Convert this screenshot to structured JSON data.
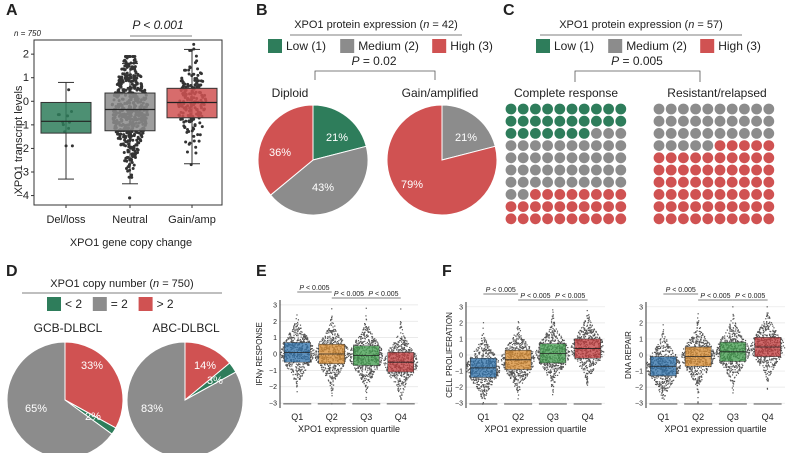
{
  "colors": {
    "low": "#2e7d5b",
    "medium": "#8c8c8c",
    "high": "#d05252",
    "dots": "#333333"
  },
  "panels": {
    "a": "A",
    "b": "B",
    "c": "C",
    "d": "D",
    "e": "E",
    "f": "F"
  },
  "chart_data": [
    {
      "id": "A",
      "type": "box",
      "n_label": "n = 750",
      "ylabel": "XPO1 transcript levels",
      "xlabel": "XPO1 gene copy change",
      "categories": [
        "Del/loss",
        "Neutral",
        "Gain/amp"
      ],
      "yticks": [
        "−4",
        "−3",
        "−2",
        "−1",
        "0",
        "1",
        "2"
      ],
      "ylim": [
        -4.4,
        2.6
      ],
      "boxes": [
        {
          "name": "Del/loss",
          "min": -3.3,
          "q1": -1.35,
          "median": -0.85,
          "q3": -0.05,
          "max": 0.8,
          "color": "#2e7d5b"
        },
        {
          "name": "Neutral",
          "min": -3.5,
          "q1": -1.25,
          "median": -0.35,
          "q3": 0.35,
          "max": 1.6,
          "color": "#8c8c8c"
        },
        {
          "name": "Gain/amp",
          "min": -2.65,
          "q1": -0.7,
          "median": -0.05,
          "q3": 0.55,
          "max": 2.2,
          "color": "#d05252"
        }
      ],
      "pvalue": "P < 0.001"
    },
    {
      "id": "B",
      "type": "pie",
      "title_prefix": "XPO1 protein expression (",
      "title_n": "n",
      "title_suffix": " = 42)",
      "legend": [
        "Low (1)",
        "Medium (2)",
        "High (3)"
      ],
      "pvalue": "P = 0.02",
      "pies": [
        {
          "name": "Diploid",
          "slices": [
            {
              "label": "Low",
              "value": 21
            },
            {
              "label": "Medium",
              "value": 43
            },
            {
              "label": "High",
              "value": 36
            }
          ],
          "labels": [
            "21%",
            "43%",
            "36%"
          ]
        },
        {
          "name": "Gain/amplified",
          "slices": [
            {
              "label": "Low",
              "value": 0
            },
            {
              "label": "Medium",
              "value": 21
            },
            {
              "label": "High",
              "value": 79
            }
          ],
          "labels": [
            "21%",
            "79%"
          ]
        }
      ]
    },
    {
      "id": "C",
      "type": "waffle",
      "title_prefix": "XPO1 protein expression (",
      "title_n": "n",
      "title_suffix": " = 57)",
      "legend": [
        "Low (1)",
        "Medium (2)",
        "High (3)"
      ],
      "pvalue": "P = 0.005",
      "groups": [
        {
          "name": "Complete response",
          "low": 27,
          "medium": 45,
          "high": 28
        },
        {
          "name": "Resistant/relapsed",
          "low": 0,
          "medium": 35,
          "high": 65
        }
      ]
    },
    {
      "id": "D",
      "type": "pie",
      "title_prefix": "XPO1 copy number (",
      "title_n": "n",
      "title_suffix": " = 750)",
      "legend": [
        "< 2",
        "= 2",
        "> 2"
      ],
      "pies": [
        {
          "name": "GCB-DLBCL",
          "slices": [
            {
              "label": "> 2",
              "value": 33
            },
            {
              "label": "< 2",
              "value": 2
            },
            {
              "label": "= 2",
              "value": 65
            }
          ],
          "labels": [
            "33%",
            "2%",
            "65%"
          ]
        },
        {
          "name": "ABC-DLBCL",
          "slices": [
            {
              "label": "> 2",
              "value": 14
            },
            {
              "label": "< 2",
              "value": 3
            },
            {
              "label": "= 2",
              "value": 83
            }
          ],
          "labels": [
            "14%",
            "3%",
            "83%"
          ]
        }
      ]
    },
    {
      "id": "E",
      "type": "box",
      "ylabel": "IFNγ RESPONSE",
      "xlabel": "XPO1 expression quartile",
      "categories": [
        "Q1",
        "Q2",
        "Q3",
        "Q4"
      ],
      "yticks": [
        "−3",
        "−2",
        "−1",
        "0",
        "1",
        "2",
        "3"
      ],
      "ylim": [
        -3.3,
        3.3
      ],
      "medians": [
        0.1,
        0.0,
        -0.1,
        -0.5
      ],
      "box_colors": [
        "#2c6fa8",
        "#d68a2f",
        "#3e9a4a",
        "#c0393b"
      ],
      "pvalues": [
        "P < 0.005",
        "P < 0.005",
        "P < 0.005"
      ]
    },
    {
      "id": "F1",
      "type": "box",
      "ylabel": "CELL PROLIFERATION",
      "xlabel": "XPO1 expression quartile",
      "categories": [
        "Q1",
        "Q2",
        "Q3",
        "Q4"
      ],
      "yticks": [
        "−3",
        "−2",
        "−1",
        "0",
        "1",
        "2",
        "3"
      ],
      "ylim": [
        -3.3,
        3.3
      ],
      "medians": [
        -0.8,
        -0.3,
        0.1,
        0.4
      ],
      "box_colors": [
        "#2c6fa8",
        "#d68a2f",
        "#3e9a4a",
        "#c0393b"
      ],
      "pvalues": [
        "P < 0.005",
        "P < 0.005",
        "P < 0.005"
      ]
    },
    {
      "id": "F2",
      "type": "box",
      "ylabel": "DNA REPAIR",
      "xlabel": "XPO1 expression quartile",
      "categories": [
        "Q1",
        "Q2",
        "Q3",
        "Q4"
      ],
      "yticks": [
        "−3",
        "−2",
        "−1",
        "0",
        "1",
        "2",
        "3"
      ],
      "ylim": [
        -3.3,
        3.3
      ],
      "medians": [
        -0.7,
        -0.1,
        0.2,
        0.5
      ],
      "box_colors": [
        "#2c6fa8",
        "#d68a2f",
        "#3e9a4a",
        "#c0393b"
      ],
      "pvalues": [
        "P < 0.005",
        "P < 0.005",
        "P < 0.005"
      ]
    }
  ]
}
